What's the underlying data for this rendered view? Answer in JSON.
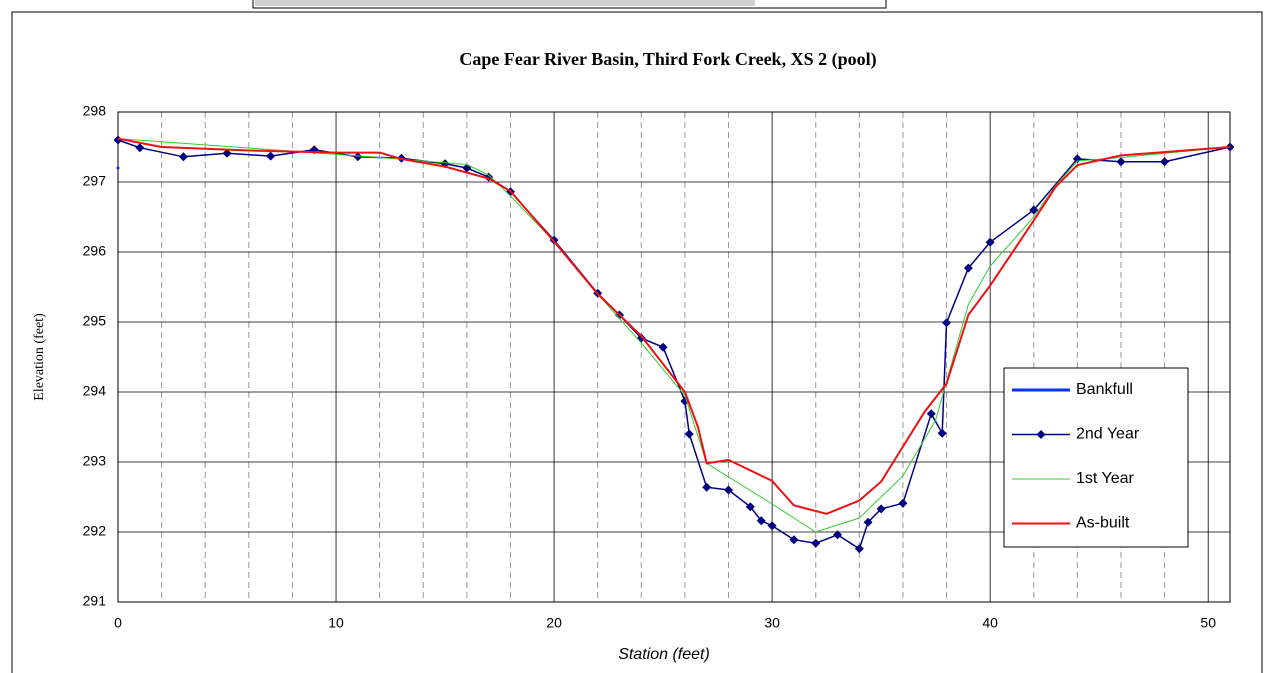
{
  "chart_data": {
    "type": "line",
    "title": "Cape Fear River Basin, Third Fork Creek, XS 2 (pool)",
    "xlabel": "Station (feet)",
    "ylabel": "Elevation (feet)",
    "xlim": [
      0,
      51
    ],
    "ylim": [
      291,
      298
    ],
    "xticks": [
      0,
      10,
      20,
      30,
      40,
      50
    ],
    "xminorticks": [
      2,
      4,
      6,
      8,
      12,
      14,
      16,
      18,
      22,
      24,
      26,
      28,
      32,
      34,
      36,
      38,
      42,
      44,
      46,
      48
    ],
    "yticks": [
      291,
      292,
      293,
      294,
      295,
      296,
      297,
      298
    ],
    "grid": true,
    "legend": "lower right",
    "series": [
      {
        "name": "Bankfull",
        "color": "#0033ff",
        "width": 3,
        "x": [
          0
        ],
        "values": [
          297.2
        ]
      },
      {
        "name": "2nd Year",
        "color": "#000080",
        "width": 1.5,
        "marker": "diamond",
        "x": [
          0,
          1,
          3,
          5,
          7,
          9,
          11,
          13,
          15,
          16,
          17,
          18,
          20,
          22,
          23,
          24,
          25,
          26,
          26.2,
          27,
          28,
          29,
          29.5,
          30,
          31,
          32,
          33,
          34,
          34.4,
          35,
          36,
          37.3,
          37.8,
          38,
          39,
          40,
          42,
          44,
          46,
          48,
          51
        ],
        "values": [
          297.6,
          297.49,
          297.36,
          297.41,
          297.37,
          297.46,
          297.36,
          297.34,
          297.26,
          297.2,
          297.07,
          296.86,
          296.17,
          295.41,
          295.1,
          294.77,
          294.64,
          293.87,
          293.4,
          292.64,
          292.6,
          292.36,
          292.16,
          292.09,
          291.89,
          291.84,
          291.96,
          291.76,
          292.14,
          292.33,
          292.41,
          293.69,
          293.41,
          294.99,
          295.77,
          296.14,
          296.6,
          297.33,
          297.29,
          297.29,
          297.5
        ]
      },
      {
        "name": "1st Year",
        "color": "#33cc33",
        "width": 1,
        "x": [
          0,
          8,
          12,
          16,
          17,
          18,
          20,
          22,
          24,
          26,
          27,
          30,
          32,
          34,
          36,
          37.5,
          39,
          40,
          42,
          43,
          44,
          46,
          51
        ],
        "values": [
          297.62,
          297.44,
          297.35,
          297.25,
          297.1,
          296.8,
          296.15,
          295.4,
          294.7,
          293.95,
          292.98,
          292.4,
          292.0,
          292.2,
          292.8,
          293.6,
          295.25,
          295.8,
          296.5,
          296.95,
          297.3,
          297.35,
          297.5
        ]
      },
      {
        "name": "As-built",
        "color": "#ee1111",
        "width": 2,
        "x": [
          0,
          2,
          6,
          10,
          12,
          13,
          15,
          17,
          18,
          20,
          22,
          24,
          26,
          26.6,
          27,
          28,
          30,
          31,
          32.5,
          34,
          35,
          37,
          38,
          39,
          40,
          42,
          43,
          44,
          46,
          51
        ],
        "values": [
          297.62,
          297.5,
          297.45,
          297.42,
          297.42,
          297.33,
          297.22,
          297.05,
          296.87,
          296.15,
          295.4,
          294.8,
          294.0,
          293.5,
          292.98,
          293.03,
          292.73,
          292.38,
          292.26,
          292.45,
          292.72,
          293.72,
          294.12,
          295.1,
          295.52,
          296.45,
          296.93,
          297.24,
          297.38,
          297.5
        ]
      }
    ]
  }
}
